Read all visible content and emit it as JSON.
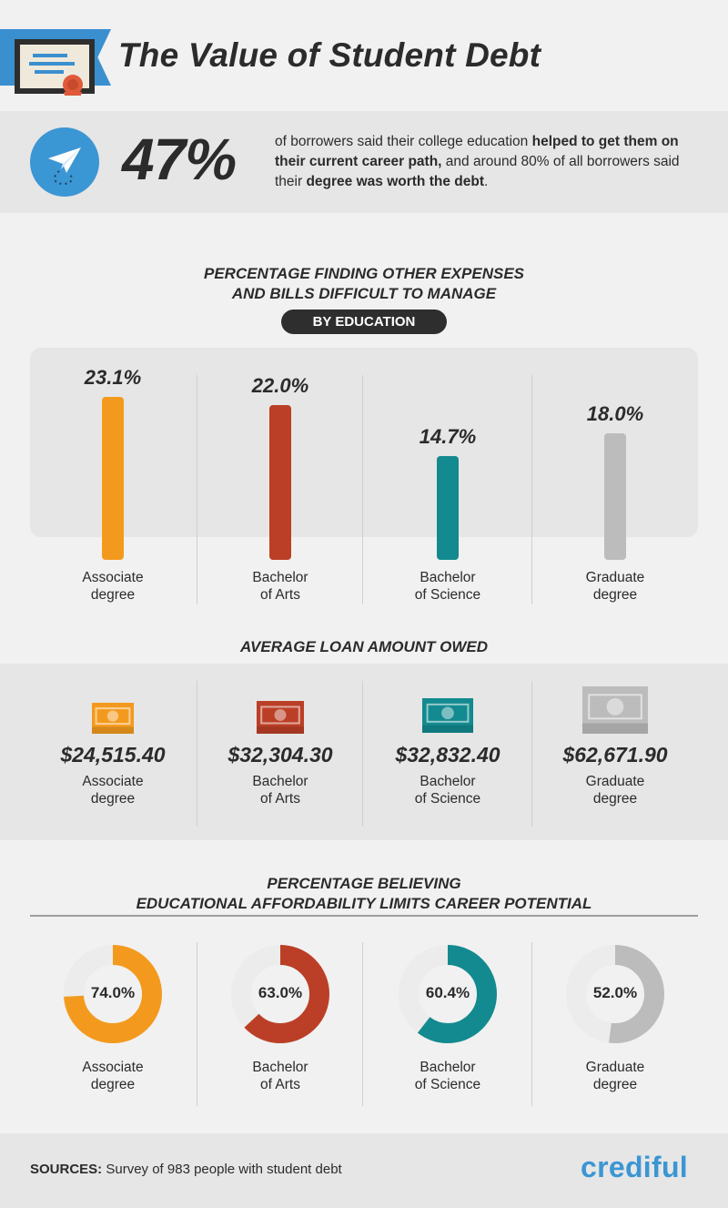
{
  "title": "The Value of Student Debt",
  "stat": {
    "number": "47%",
    "text_parts": [
      {
        "t": "of borrowers said their college education ",
        "b": false
      },
      {
        "t": "helped to get them on their current career path,",
        "b": true
      },
      {
        "t": " and around 80% of all borrowers said their ",
        "b": false
      },
      {
        "t": "degree was worth the debt",
        "b": true
      },
      {
        "t": ".",
        "b": false
      }
    ]
  },
  "section1": {
    "heading_line1": "PERCENTAGE FINDING OTHER EXPENSES",
    "heading_line2": "AND BILLS DIFFICULT TO MANAGE",
    "pill": "BY EDUCATION"
  },
  "section2": {
    "heading": "AVERAGE LOAN AMOUNT OWED"
  },
  "section3": {
    "heading_line1": "PERCENTAGE BELIEVING",
    "heading_line2": "EDUCATIONAL AFFORDABILITY LIMITS CAREER POTENTIAL"
  },
  "categories": [
    {
      "line1": "Associate",
      "line2": "degree"
    },
    {
      "line1": "Bachelor",
      "line2": "of Arts"
    },
    {
      "line1": "Bachelor",
      "line2": "of Science"
    },
    {
      "line1": "Graduate",
      "line2": "degree"
    }
  ],
  "colors": {
    "associate": "#f39a1e",
    "arts": "#bb3f26",
    "science": "#138a8f",
    "graduate": "#bcbcbc",
    "brand_blue": "#3b96d4",
    "track": "#ececec"
  },
  "chart_data": [
    {
      "type": "bar",
      "title": "PERCENTAGE FINDING OTHER EXPENSES AND BILLS DIFFICULT TO MANAGE",
      "subtitle": "BY EDUCATION",
      "categories": [
        "Associate degree",
        "Bachelor of Arts",
        "Bachelor of Science",
        "Graduate degree"
      ],
      "values": [
        23.1,
        22.0,
        14.7,
        18.0
      ],
      "labels": [
        "23.1%",
        "22.0%",
        "14.7%",
        "18.0%"
      ],
      "unit": "%"
    },
    {
      "type": "table",
      "title": "AVERAGE LOAN AMOUNT OWED",
      "categories": [
        "Associate degree",
        "Bachelor of Arts",
        "Bachelor of Science",
        "Graduate degree"
      ],
      "values": [
        24515.4,
        32304.3,
        32832.4,
        62671.9
      ],
      "labels": [
        "$24,515.40",
        "$32,304.30",
        "$32,832.40",
        "$62,671.90"
      ]
    },
    {
      "type": "pie",
      "title": "PERCENTAGE BELIEVING EDUCATIONAL AFFORDABILITY LIMITS CAREER POTENTIAL",
      "categories": [
        "Associate degree",
        "Bachelor of Arts",
        "Bachelor of Science",
        "Graduate degree"
      ],
      "values": [
        74.0,
        63.0,
        60.4,
        52.0
      ],
      "labels": [
        "74.0%",
        "63.0%",
        "60.4%",
        "52.0%"
      ],
      "unit": "%"
    }
  ],
  "footer": {
    "sources_label": "SOURCES:",
    "sources_text": " Survey of 983 people with student debt",
    "brand": "crediful"
  }
}
